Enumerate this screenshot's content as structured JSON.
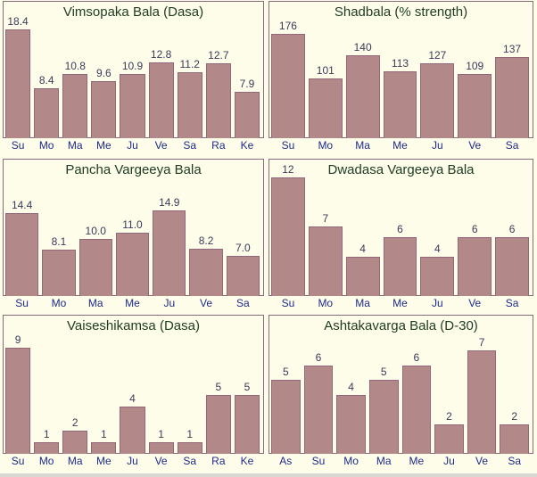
{
  "chart_data": [
    {
      "type": "bar",
      "title": "Vimsopaka Bala (Dasa)",
      "categories": [
        "Su",
        "Mo",
        "Ma",
        "Me",
        "Ju",
        "Ve",
        "Sa",
        "Ra",
        "Ke"
      ],
      "values": [
        18.4,
        8.4,
        10.8,
        9.6,
        10.9,
        12.8,
        11.2,
        12.7,
        7.9
      ],
      "labels": [
        "18.4",
        "8.4",
        "10.8",
        "9.6",
        "10.9",
        "12.8",
        "11.2",
        "12.7",
        "7.9"
      ]
    },
    {
      "type": "bar",
      "title": "Shadbala (% strength)",
      "categories": [
        "Su",
        "Mo",
        "Ma",
        "Me",
        "Ju",
        "Ve",
        "Sa"
      ],
      "values": [
        176,
        101,
        140,
        113,
        127,
        109,
        137
      ],
      "labels": [
        "176",
        "101",
        "140",
        "113",
        "127",
        "109",
        "137"
      ]
    },
    {
      "type": "bar",
      "title": "Pancha Vargeeya Bala",
      "categories": [
        "Su",
        "Mo",
        "Ma",
        "Me",
        "Ju",
        "Ve",
        "Sa"
      ],
      "values": [
        14.4,
        8.1,
        10.0,
        11.0,
        14.9,
        8.2,
        7.0
      ],
      "labels": [
        "14.4",
        "8.1",
        "10.0",
        "11.0",
        "14.9",
        "8.2",
        "7.0"
      ]
    },
    {
      "type": "bar",
      "title": "Dwadasa Vargeeya Bala",
      "categories": [
        "Su",
        "Mo",
        "Ma",
        "Me",
        "Ju",
        "Ve",
        "Sa"
      ],
      "values": [
        12,
        7,
        4,
        6,
        4,
        6,
        6
      ],
      "labels": [
        "12",
        "7",
        "4",
        "6",
        "4",
        "6",
        "6"
      ]
    },
    {
      "type": "bar",
      "title": "Vaiseshikamsa (Dasa)",
      "categories": [
        "Su",
        "Mo",
        "Ma",
        "Me",
        "Ju",
        "Ve",
        "Sa",
        "Ra",
        "Ke"
      ],
      "values": [
        9,
        1,
        2,
        1,
        4,
        1,
        1,
        5,
        5
      ],
      "labels": [
        "9",
        "1",
        "2",
        "1",
        "4",
        "1",
        "1",
        "5",
        "5"
      ]
    },
    {
      "type": "bar",
      "title": "Ashtakavarga Bala (D-30)",
      "categories": [
        "As",
        "Su",
        "Mo",
        "Ma",
        "Me",
        "Ju",
        "Ve",
        "Sa"
      ],
      "values": [
        5,
        6,
        4,
        5,
        6,
        2,
        7,
        2
      ],
      "labels": [
        "5",
        "6",
        "4",
        "5",
        "6",
        "2",
        "7",
        "2"
      ]
    }
  ]
}
